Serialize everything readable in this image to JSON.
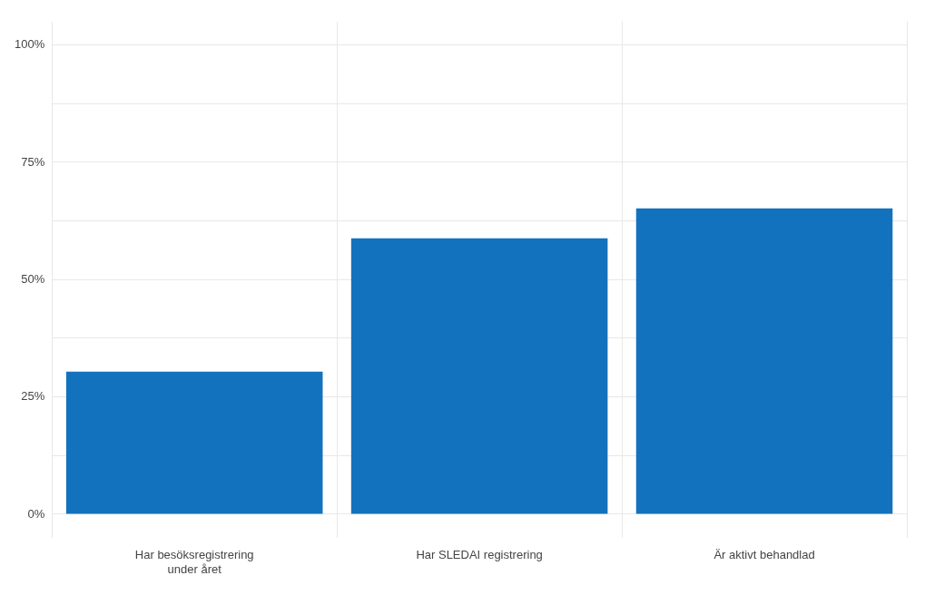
{
  "chart_data": {
    "type": "bar",
    "categories": [
      "Har besöksregistrering\nunder året",
      "Har SLEDAI registrering",
      "Är aktivt behandlad"
    ],
    "values": [
      30.4,
      58.8,
      65.2
    ],
    "color": "#1272be",
    "ylim": [
      -5,
      105
    ],
    "yticks": [
      {
        "value": 0,
        "label": "0%"
      },
      {
        "value": 12.5,
        "label": null
      },
      {
        "value": 25,
        "label": "25%"
      },
      {
        "value": 37.5,
        "label": null
      },
      {
        "value": 50,
        "label": "50%"
      },
      {
        "value": 62.5,
        "label": null
      },
      {
        "value": 75,
        "label": "75%"
      },
      {
        "value": 87.5,
        "label": null
      },
      {
        "value": 100,
        "label": "100%"
      }
    ],
    "grid": true
  }
}
